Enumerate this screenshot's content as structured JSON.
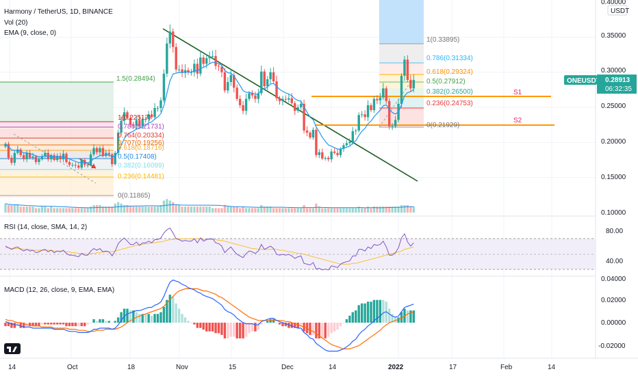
{
  "header": {
    "title": "Harmony / TetherUS, 1D, BINANCE",
    "vol_label": "Vol (20)",
    "ema_label": "EMA (9, close, 0)"
  },
  "price_axis": {
    "currency": "USDT",
    "ticks": [
      "0.40000",
      "0.35000",
      "0.30000",
      "0.25000",
      "0.20000",
      "0.15000",
      "0.10000"
    ],
    "last_price_symbol": "ONEUSDT",
    "last_price": "0.28913",
    "countdown": "06:32:35"
  },
  "time_axis": {
    "ticks": [
      "14",
      "Oct",
      "18",
      "Nov",
      "15",
      "Dec",
      "14",
      "2022",
      "17",
      "Feb",
      "14"
    ]
  },
  "fib_left": {
    "labels": [
      "1.5(0.28494)",
      "1(0.22517)",
      "0.786(0.21731)",
      "0.764(0.20334)",
      "0.707(0.19256)",
      "0.618(0.18716)",
      "0.5(0.17408)",
      "0.382(0.16099)",
      "0.236(0.14481)",
      "0(0.11865)"
    ]
  },
  "fib_right": {
    "labels": [
      "1(0.33895)",
      "0.786(0.31334)",
      "0.618(0.29324)",
      "0.5(0.27912)",
      "0.382(0.26500)",
      "0.236(0.24753)",
      "0(0.21929)"
    ]
  },
  "levels": {
    "s1": "S1",
    "s2": "S2"
  },
  "rsi": {
    "label": "RSI (14, close, SMA, 14, 2)",
    "ticks": [
      "80.00",
      "40.00"
    ]
  },
  "macd": {
    "label": "MACD (12, 26, close, 9, EMA, EMA)",
    "ticks": [
      "0.04000",
      "0.02000",
      "0.00000",
      "-0.02000"
    ]
  },
  "colors": {
    "up": "#26a69a",
    "down": "#ef5350",
    "ema": "#2196f3",
    "trendline": "#1b5e20",
    "support": "#ff9800",
    "rsi_line": "#7e57c2",
    "macd_line": "#2962ff",
    "signal_line": "#ff6d00"
  },
  "chart_data": {
    "type": "candlestick",
    "symbol": "ONEUSDT",
    "interval": "1D",
    "y_range": [
      0.1,
      0.4
    ],
    "price_levels": {
      "S1": 0.265,
      "S2": 0.2245
    },
    "fib_right": [
      {
        "ratio": 1,
        "price": 0.33895
      },
      {
        "ratio": 0.786,
        "price": 0.31334
      },
      {
        "ratio": 0.618,
        "price": 0.29324
      },
      {
        "ratio": 0.5,
        "price": 0.27912
      },
      {
        "ratio": 0.382,
        "price": 0.265
      },
      {
        "ratio": 0.236,
        "price": 0.24753
      },
      {
        "ratio": 0,
        "price": 0.21929
      }
    ],
    "fib_left": [
      {
        "ratio": 1.5,
        "price": 0.28494
      },
      {
        "ratio": 1,
        "price": 0.22517
      },
      {
        "ratio": 0.786,
        "price": 0.21731
      },
      {
        "ratio": 0.764,
        "price": 0.20334
      },
      {
        "ratio": 0.707,
        "price": 0.19256
      },
      {
        "ratio": 0.618,
        "price": 0.18716
      },
      {
        "ratio": 0.5,
        "price": 0.17408
      },
      {
        "ratio": 0.382,
        "price": 0.16099
      },
      {
        "ratio": 0.236,
        "price": 0.14481
      },
      {
        "ratio": 0,
        "price": 0.11865
      }
    ],
    "closes": [
      0.198,
      0.178,
      0.171,
      0.185,
      0.19,
      0.182,
      0.176,
      0.185,
      0.178,
      0.18,
      0.172,
      0.176,
      0.18,
      0.185,
      0.176,
      0.182,
      0.175,
      0.181,
      0.176,
      0.184,
      0.172,
      0.168,
      0.168,
      0.167,
      0.164,
      0.175,
      0.168,
      0.168,
      0.183,
      0.192,
      0.186,
      0.192,
      0.181,
      0.185,
      0.183,
      0.169,
      0.185,
      0.214,
      0.231,
      0.243,
      0.235,
      0.225,
      0.224,
      0.232,
      0.223,
      0.233,
      0.233,
      0.24,
      0.236,
      0.249,
      0.249,
      0.26,
      0.298,
      0.341,
      0.358,
      0.336,
      0.304,
      0.304,
      0.299,
      0.303,
      0.3,
      0.3,
      0.312,
      0.298,
      0.321,
      0.312,
      0.32,
      0.323,
      0.323,
      0.309,
      0.308,
      0.3,
      0.274,
      0.286,
      0.296,
      0.278,
      0.262,
      0.253,
      0.245,
      0.262,
      0.27,
      0.267,
      0.262,
      0.27,
      0.301,
      0.28,
      0.29,
      0.3,
      0.287,
      0.263,
      0.259,
      0.262,
      0.261,
      0.263,
      0.256,
      0.245,
      0.25,
      0.255,
      0.217,
      0.214,
      0.207,
      0.218,
      0.182,
      0.186,
      0.177,
      0.178,
      0.176,
      0.187,
      0.185,
      0.182,
      0.191,
      0.196,
      0.199,
      0.201,
      0.216,
      0.217,
      0.239,
      0.24,
      0.236,
      0.253,
      0.246,
      0.262,
      0.26,
      0.264,
      0.277,
      0.259,
      0.223,
      0.223,
      0.232,
      0.255,
      0.295,
      0.318,
      0.289,
      0.277,
      0.289
    ],
    "volumes": [
      0.6,
      0.5,
      0.5,
      0.5,
      0.5,
      0.4,
      0.4,
      0.4,
      0.4,
      0.4,
      0.3,
      0.3,
      0.4,
      0.4,
      0.3,
      0.4,
      0.3,
      0.3,
      0.3,
      0.3,
      0.3,
      0.3,
      0.3,
      0.3,
      0.3,
      0.3,
      0.3,
      0.3,
      0.4,
      0.5,
      0.5,
      0.5,
      0.4,
      0.4,
      0.4,
      0.4,
      0.6,
      0.7,
      0.6,
      0.5,
      0.5,
      0.4,
      0.4,
      0.4,
      0.4,
      0.4,
      0.4,
      0.4,
      0.4,
      0.4,
      0.4,
      0.5,
      0.8,
      0.9,
      0.8,
      0.7,
      0.5,
      0.5,
      0.4,
      0.4,
      0.4,
      0.4,
      0.4,
      0.4,
      0.4,
      0.4,
      0.4,
      0.4,
      0.3,
      0.3,
      0.3,
      0.3,
      0.5,
      0.4,
      0.4,
      0.4,
      0.4,
      0.3,
      0.4,
      0.3,
      0.3,
      0.3,
      0.3,
      0.3,
      0.5,
      0.4,
      0.4,
      0.4,
      0.3,
      0.3,
      0.3,
      0.3,
      0.3,
      0.3,
      0.3,
      0.3,
      0.3,
      0.3,
      0.5,
      0.3,
      0.3,
      0.3,
      0.6,
      0.4,
      0.3,
      0.3,
      0.3,
      0.3,
      0.3,
      0.3,
      0.3,
      0.3,
      0.3,
      0.3,
      0.3,
      0.3,
      0.4,
      0.3,
      0.3,
      0.4,
      0.3,
      0.4,
      0.4,
      0.4,
      0.4,
      0.4,
      0.4,
      0.4,
      0.4,
      0.4,
      0.5,
      0.5,
      0.5,
      0.4,
      0.4
    ],
    "rsi": {
      "y_range": [
        25,
        95
      ],
      "bands": [
        70,
        30
      ],
      "values": [
        60,
        58,
        56,
        58,
        59,
        56,
        54,
        56,
        54,
        55,
        52,
        53,
        55,
        56,
        53,
        55,
        52,
        54,
        53,
        55,
        51,
        49,
        49,
        48,
        47,
        51,
        49,
        49,
        54,
        57,
        55,
        57,
        53,
        54,
        53,
        48,
        54,
        63,
        67,
        70,
        66,
        62,
        62,
        65,
        61,
        64,
        64,
        66,
        64,
        68,
        68,
        70,
        76,
        80,
        82,
        76,
        69,
        68,
        66,
        67,
        66,
        66,
        69,
        64,
        70,
        66,
        68,
        69,
        69,
        64,
        63,
        60,
        52,
        56,
        59,
        54,
        50,
        48,
        46,
        51,
        54,
        53,
        51,
        54,
        62,
        56,
        58,
        60,
        57,
        50,
        49,
        50,
        49,
        50,
        48,
        45,
        47,
        48,
        39,
        38,
        37,
        40,
        32,
        33,
        31,
        32,
        31,
        36,
        35,
        34,
        38,
        40,
        41,
        42,
        48,
        48,
        56,
        56,
        54,
        59,
        57,
        62,
        61,
        62,
        66,
        59,
        49,
        49,
        52,
        58,
        70,
        75,
        65,
        60,
        64
      ],
      "sma": [
        58,
        58,
        57,
        57,
        57,
        57,
        56,
        56,
        56,
        55,
        55,
        55,
        55,
        55,
        55,
        55,
        54,
        54,
        54,
        54,
        53,
        53,
        52,
        52,
        51,
        51,
        51,
        50,
        51,
        51,
        52,
        52,
        53,
        53,
        53,
        53,
        54,
        55,
        56,
        57,
        58,
        59,
        60,
        61,
        61,
        62,
        63,
        63,
        64,
        64,
        65,
        65,
        66,
        67,
        68,
        68,
        69,
        69,
        69,
        69,
        69,
        69,
        69,
        69,
        69,
        68,
        68,
        68,
        68,
        68,
        67,
        67,
        66,
        65,
        64,
        63,
        62,
        61,
        60,
        59,
        58,
        57,
        57,
        56,
        56,
        56,
        56,
        56,
        56,
        56,
        55,
        55,
        54,
        53,
        53,
        52,
        51,
        51,
        50,
        49,
        48,
        47,
        46,
        45,
        44,
        43,
        42,
        41,
        40,
        39,
        38,
        38,
        38,
        38,
        39,
        39,
        40,
        41,
        42,
        43,
        44,
        45,
        46,
        47,
        48,
        49,
        50,
        51,
        52,
        53,
        54,
        56,
        57,
        58,
        59
      ]
    },
    "macd": {
      "y_range": [
        -0.03,
        0.04
      ],
      "macd_line": [
        0.001,
        0.0,
        -0.001,
        -0.002,
        -0.002,
        -0.003,
        -0.004,
        -0.004,
        -0.004,
        -0.005,
        -0.005,
        -0.005,
        -0.005,
        -0.005,
        -0.005,
        -0.005,
        -0.006,
        -0.006,
        -0.006,
        -0.006,
        -0.007,
        -0.008,
        -0.008,
        -0.008,
        -0.009,
        -0.009,
        -0.009,
        -0.009,
        -0.008,
        -0.006,
        -0.006,
        -0.005,
        -0.005,
        -0.005,
        -0.005,
        -0.006,
        -0.005,
        -0.002,
        0.002,
        0.006,
        0.008,
        0.009,
        0.01,
        0.011,
        0.011,
        0.012,
        0.013,
        0.014,
        0.014,
        0.016,
        0.017,
        0.019,
        0.024,
        0.031,
        0.037,
        0.039,
        0.038,
        0.037,
        0.035,
        0.034,
        0.032,
        0.031,
        0.03,
        0.028,
        0.027,
        0.025,
        0.024,
        0.023,
        0.022,
        0.02,
        0.018,
        0.016,
        0.012,
        0.01,
        0.009,
        0.007,
        0.004,
        0.002,
        0.0,
        -0.001,
        -0.001,
        -0.001,
        -0.002,
        -0.002,
        0.001,
        0.002,
        0.003,
        0.004,
        0.004,
        0.002,
        0.001,
        0.0,
        -0.001,
        -0.002,
        -0.003,
        -0.004,
        -0.005,
        -0.005,
        -0.009,
        -0.011,
        -0.014,
        -0.015,
        -0.019,
        -0.021,
        -0.023,
        -0.025,
        -0.026,
        -0.026,
        -0.026,
        -0.026,
        -0.025,
        -0.024,
        -0.022,
        -0.02,
        -0.017,
        -0.015,
        -0.011,
        -0.008,
        -0.006,
        -0.003,
        -0.001,
        0.002,
        0.004,
        0.006,
        0.009,
        0.01,
        0.008,
        0.006,
        0.005,
        0.006,
        0.01,
        0.014,
        0.015,
        0.016,
        0.017
      ],
      "signal_line": [
        0.003,
        0.002,
        0.002,
        0.001,
        0.0,
        0.0,
        -0.001,
        -0.002,
        -0.002,
        -0.003,
        -0.003,
        -0.003,
        -0.004,
        -0.004,
        -0.004,
        -0.004,
        -0.005,
        -0.005,
        -0.005,
        -0.005,
        -0.005,
        -0.006,
        -0.006,
        -0.006,
        -0.007,
        -0.007,
        -0.007,
        -0.008,
        -0.008,
        -0.008,
        -0.007,
        -0.007,
        -0.007,
        -0.006,
        -0.006,
        -0.006,
        -0.006,
        -0.005,
        -0.004,
        -0.002,
        0.0,
        0.002,
        0.003,
        0.005,
        0.006,
        0.007,
        0.008,
        0.009,
        0.01,
        0.011,
        0.012,
        0.013,
        0.015,
        0.018,
        0.021,
        0.024,
        0.027,
        0.029,
        0.03,
        0.031,
        0.031,
        0.031,
        0.031,
        0.031,
        0.03,
        0.029,
        0.029,
        0.028,
        0.027,
        0.026,
        0.024,
        0.023,
        0.021,
        0.019,
        0.017,
        0.015,
        0.013,
        0.011,
        0.009,
        0.007,
        0.005,
        0.004,
        0.003,
        0.002,
        0.002,
        0.002,
        0.002,
        0.002,
        0.002,
        0.002,
        0.002,
        0.002,
        0.001,
        0.001,
        0.0,
        -0.001,
        -0.002,
        -0.003,
        -0.004,
        -0.005,
        -0.007,
        -0.008,
        -0.01,
        -0.012,
        -0.014,
        -0.016,
        -0.018,
        -0.02,
        -0.021,
        -0.022,
        -0.023,
        -0.024,
        -0.024,
        -0.024,
        -0.023,
        -0.022,
        -0.021,
        -0.019,
        -0.017,
        -0.015,
        -0.013,
        -0.011,
        -0.009,
        -0.007,
        -0.004,
        -0.002,
        0.0,
        0.001,
        0.002,
        0.003,
        0.004,
        0.006,
        0.008,
        0.009,
        0.01
      ]
    }
  }
}
